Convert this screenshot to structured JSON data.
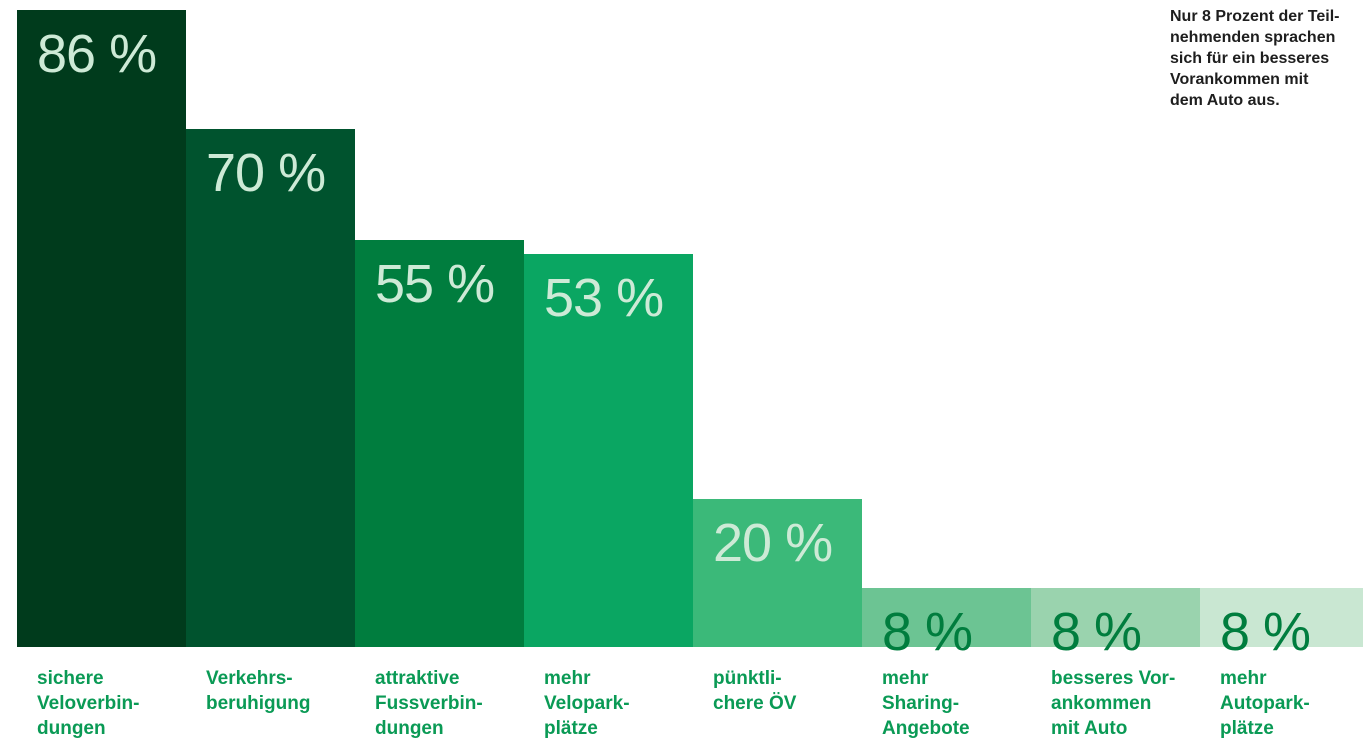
{
  "chart_data": {
    "type": "bar",
    "title": "",
    "xlabel": "",
    "ylabel": "",
    "ylim": [
      0,
      100
    ],
    "grid": false,
    "categories": [
      "sichere\nVeloverbin-\ndungen",
      "Verkehrs-\nberuhigung",
      "attraktive\nFussverbin-\ndungen",
      "mehr\nVelopark-\nplätze",
      "pünktli-\nchere ÖV",
      "mehr\nSharing-\nAngebote",
      "besseres Vor-\nankommen\nmit Auto",
      "mehr\nAutopark-\nplätze"
    ],
    "values": [
      86,
      70,
      55,
      53,
      20,
      8,
      8,
      8
    ],
    "value_labels": [
      "86 %",
      "70 %",
      "55 %",
      "53 %",
      "20 %",
      "8 %",
      "8 %",
      "8 %"
    ],
    "bar_colors": [
      "#003b1c",
      "#00532e",
      "#007d3e",
      "#0aa662",
      "#3bb979",
      "#6cc493",
      "#9ad3ae",
      "#c9e7d2"
    ],
    "value_label_colors": [
      "#cdead6",
      "#cdead6",
      "#cdead6",
      "#cdead6",
      "#cdead6",
      "#007d3e",
      "#007d3e",
      "#007d3e"
    ],
    "category_label_color": "#0a9a55",
    "annotation": "Nur 8 Prozent der Teil-\nnehmenden sprachen\nsich für ein besseres\nVorankommen mit\ndem Auto aus."
  }
}
